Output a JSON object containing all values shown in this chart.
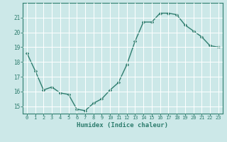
{
  "x_values": [
    0,
    1,
    2,
    3,
    4,
    5,
    6,
    7,
    8,
    9,
    10,
    11,
    12,
    13,
    14,
    15,
    16,
    17,
    18,
    19,
    20,
    21,
    22,
    23
  ],
  "y_values": [
    18.6,
    17.4,
    16.1,
    16.3,
    15.9,
    15.8,
    14.8,
    14.7,
    15.2,
    15.5,
    16.1,
    16.6,
    17.8,
    19.4,
    20.7,
    20.7,
    21.3,
    21.3,
    21.2,
    20.5,
    20.1,
    19.7,
    19.1,
    19.0
  ],
  "xlabel": "Humidex (Indice chaleur)",
  "xlim": [
    -0.5,
    23.5
  ],
  "ylim": [
    14.5,
    22.0
  ],
  "yticks": [
    15,
    16,
    17,
    18,
    19,
    20,
    21
  ],
  "xticks": [
    0,
    1,
    2,
    3,
    4,
    5,
    6,
    7,
    8,
    9,
    10,
    11,
    12,
    13,
    14,
    15,
    16,
    17,
    18,
    19,
    20,
    21,
    22,
    23
  ],
  "line_color": "#2e7d6e",
  "marker_color": "#2e7d6e",
  "bg_color": "#cce8e8",
  "grid_color": "#ffffff",
  "axis_color": "#2e7d6e",
  "tick_label_color": "#2e7d6e",
  "xlabel_color": "#2e7d6e",
  "marker": "D",
  "marker_size": 2.2,
  "line_width": 1.0
}
